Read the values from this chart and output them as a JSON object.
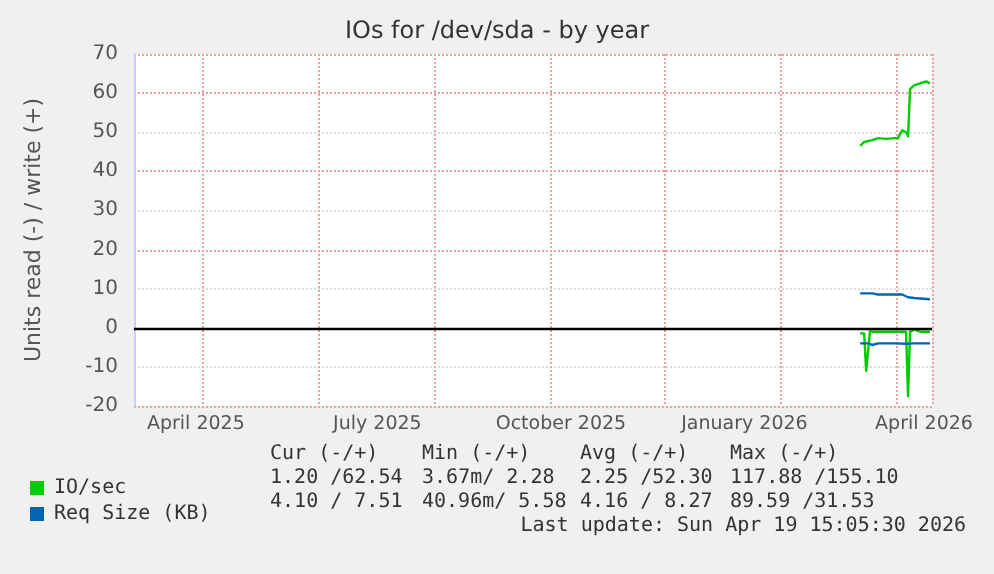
{
  "chart_data": {
    "type": "line",
    "title": "IOs for /dev/sda - by year",
    "ylabel": "Units read (-) / write (+)",
    "xlim": [
      "2025-03-15",
      "2026-04-19"
    ],
    "xticks": [
      {
        "value": "2025-04-15",
        "label": "April 2025"
      },
      {
        "value": "2025-07-15",
        "label": "July 2025"
      },
      {
        "value": "2025-10-15",
        "label": "October 2025"
      },
      {
        "value": "2026-01-15",
        "label": "January 2026"
      },
      {
        "value": "2026-04-15",
        "label": "April 2026"
      }
    ],
    "ylim": [
      -20,
      70
    ],
    "yticks": [
      -20,
      -10,
      0,
      10,
      20,
      30,
      40,
      50,
      60,
      70
    ],
    "grid": true,
    "legend": "bottom",
    "marker": "none",
    "line_style": "solid",
    "ref_lines": [
      {
        "axis": "y",
        "value": 0,
        "color": "#000000"
      }
    ],
    "series": [
      {
        "name": "IO/sec",
        "color": "#00cc00",
        "x": [
          "2026-03-14",
          "2026-03-16",
          "2026-03-20",
          "2026-03-23",
          "2026-03-27",
          "2026-03-31",
          "2026-04-02",
          "2026-04-04",
          "2026-04-06",
          "2026-04-07",
          "2026-04-08",
          "2026-04-10",
          "2026-04-13",
          "2026-04-16",
          "2026-04-18"
        ],
        "values": [
          46.5,
          47.5,
          48,
          48.5,
          48.3,
          48.5,
          48.5,
          50.5,
          50,
          49,
          61,
          62,
          62.5,
          63,
          62.5
        ]
      },
      {
        "color": "#00cc00",
        "x": [
          "2026-03-14",
          "2026-03-16",
          "2026-03-17",
          "2026-03-19",
          "2026-03-20",
          "2026-03-23",
          "2026-03-31",
          "2026-04-06",
          "2026-04-07",
          "2026-04-08",
          "2026-04-10",
          "2026-04-13",
          "2026-04-18"
        ],
        "values": [
          -1.4,
          -1.5,
          -11,
          -0.5,
          -1,
          -1,
          -1,
          -1,
          -17.5,
          -1,
          -0.5,
          -1,
          -1
        ]
      },
      {
        "name": "Req Size (KB)",
        "color": "#0066b3",
        "x": [
          "2026-03-14",
          "2026-03-20",
          "2026-03-23",
          "2026-03-29",
          "2026-04-04",
          "2026-04-07",
          "2026-04-10",
          "2026-04-13",
          "2026-04-18"
        ],
        "values": [
          8.8,
          8.8,
          8.5,
          8.5,
          8.5,
          7.8,
          7.6,
          7.5,
          7.3
        ]
      },
      {
        "color": "#0066b3",
        "x": [
          "2026-03-14",
          "2026-03-18",
          "2026-03-20",
          "2026-03-23",
          "2026-03-31",
          "2026-04-06",
          "2026-04-10",
          "2026-04-18"
        ],
        "values": [
          -4,
          -4,
          -4.4,
          -4,
          -4,
          -4.1,
          -4,
          -4
        ]
      }
    ],
    "annotations": [
      "Cur (-/+)",
      "Min (-/+)",
      "Avg (-/+)",
      "Max (-/+)",
      "1.20 /62.54",
      "3.67m/ 2.28",
      "2.25 /52.30",
      "117.88 /155.10",
      "4.10 / 7.51",
      "40.96m/ 5.58",
      "4.16 / 8.27",
      "89.59 /31.53",
      "Last update: Sun Apr 19 15:05:30 2026"
    ]
  }
}
